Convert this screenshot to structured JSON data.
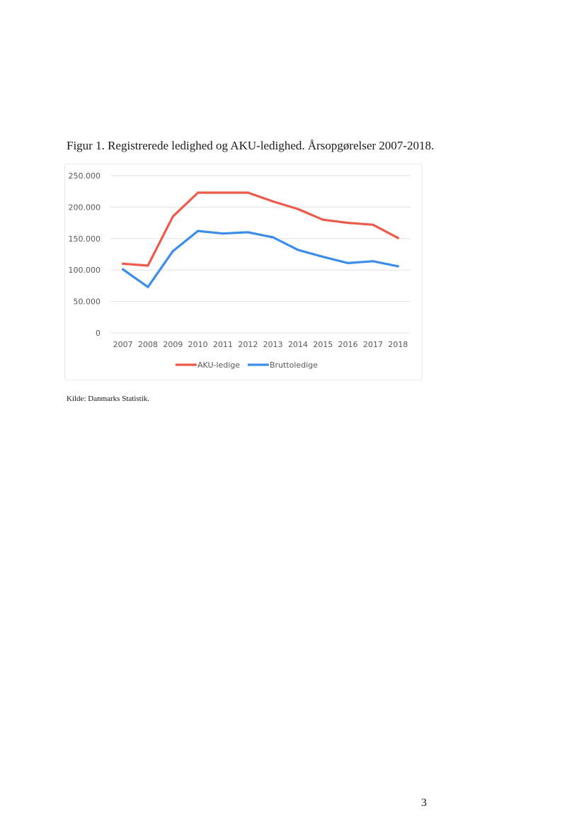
{
  "figure": {
    "title": "Figur 1. Registrerede ledighed og AKU-ledighed. Årsopgørelser 2007-2018.",
    "source": "Kilde: Danmarks Statistik."
  },
  "page_number": "3",
  "chart_data": {
    "type": "line",
    "title": "",
    "xlabel": "",
    "ylabel": "",
    "categories": [
      "2007",
      "2008",
      "2009",
      "2010",
      "2011",
      "2012",
      "2013",
      "2014",
      "2015",
      "2016",
      "2017",
      "2018"
    ],
    "series": [
      {
        "name": "AKU-ledige",
        "color": "#ed5a4a",
        "values": [
          110000,
          107000,
          185000,
          223000,
          223000,
          223000,
          209000,
          197000,
          180000,
          175000,
          172000,
          151000
        ]
      },
      {
        "name": "Bruttoledige",
        "color": "#3a8eea",
        "values": [
          101000,
          73000,
          130000,
          162000,
          158000,
          160000,
          152000,
          132000,
          121000,
          111000,
          114000,
          106000
        ]
      }
    ],
    "ylim": [
      0,
      250000
    ],
    "yticks": [
      0,
      50000,
      100000,
      150000,
      200000,
      250000
    ],
    "ytick_labels": [
      "0",
      "50.000",
      "100.000",
      "150.000",
      "200.000",
      "250.000"
    ],
    "grid": true,
    "legend": "bottom"
  }
}
